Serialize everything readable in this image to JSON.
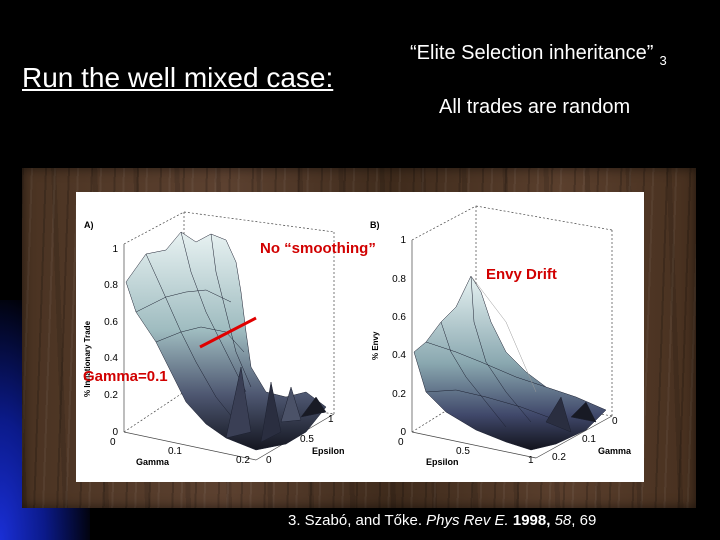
{
  "slide": {
    "title": "Run the well mixed case:",
    "subtitle": "“Elite Selection inheritance”",
    "subtitle_ref": "3",
    "note": "All trades are random"
  },
  "figure": {
    "panel_a": {
      "label": "A)",
      "z_axis_label": "% Inflationary Trade",
      "z_ticks": [
        "0",
        "0.2",
        "0.4",
        "0.6",
        "0.8",
        "1"
      ],
      "x_axis_label": "Gamma",
      "x_ticks": [
        "0",
        "0.1",
        "0.2"
      ],
      "y_axis_label": "Epsilon",
      "y_ticks": [
        "0",
        "0.5",
        "1"
      ]
    },
    "panel_b": {
      "label": "B)",
      "z_axis_label": "% Envy",
      "z_ticks": [
        "0",
        "0.2",
        "0.4",
        "0.6",
        "0.8",
        "1"
      ],
      "x_axis_label": "Epsilon",
      "x_ticks": [
        "0",
        "0.5",
        "1"
      ],
      "y_axis_label": "Gamma",
      "y_ticks": [
        "0",
        "0.1",
        "0.2"
      ]
    },
    "annotations": {
      "no_smoothing": "No “smoothing”",
      "envy_drift": "Envy Drift",
      "gamma_line": "Gamma=0.1"
    }
  },
  "citation": {
    "prefix": "3. Szabó, and Tőke.",
    "journal": "Phys Rev E.",
    "year": "1998,",
    "volume": "58",
    "pages": ", 69"
  },
  "colors": {
    "annotation": "#d10000",
    "background": "#000000"
  }
}
